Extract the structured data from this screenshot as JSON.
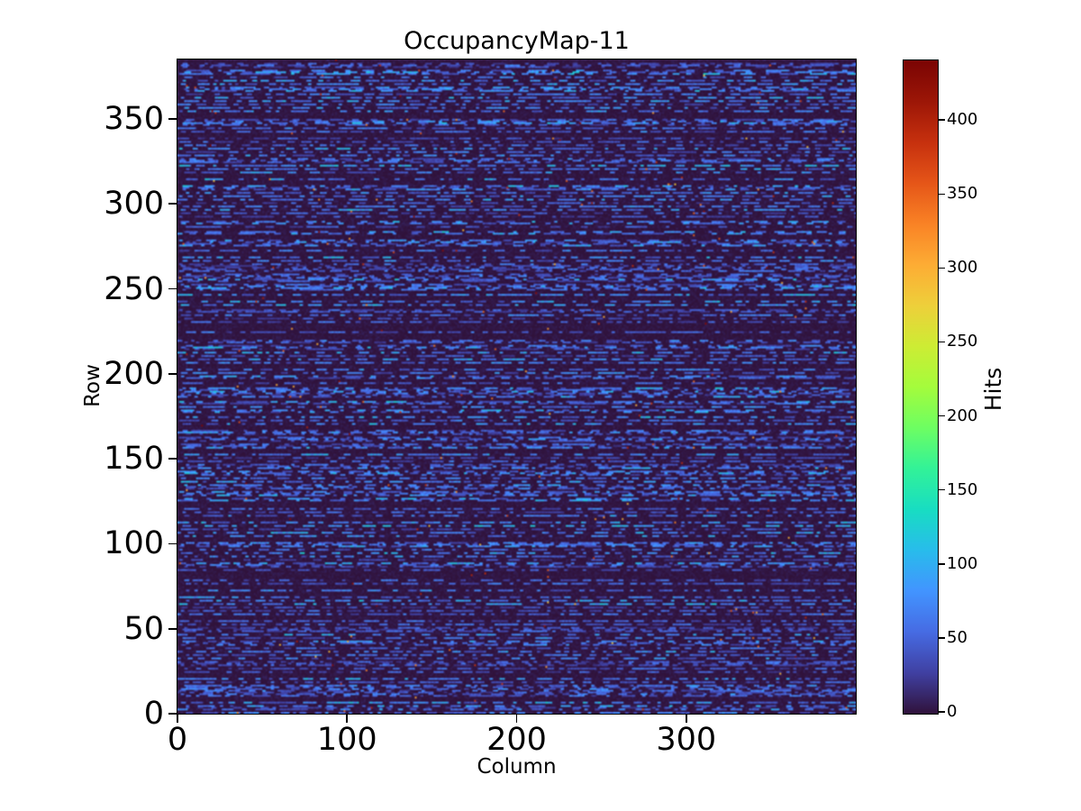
{
  "figure": {
    "background": "#ffffff"
  },
  "chart_data": {
    "type": "heatmap",
    "title": "OccupancyMap-11",
    "xlabel": "Column",
    "ylabel": "Row",
    "colorbar_label": "Hits",
    "x_range": [
      0,
      400
    ],
    "y_range": [
      0,
      385
    ],
    "x_ticks": [
      0,
      100,
      200,
      300
    ],
    "y_ticks": [
      0,
      50,
      100,
      150,
      200,
      250,
      300,
      350
    ],
    "colorbar_ticks": [
      0,
      50,
      100,
      150,
      200,
      250,
      300,
      350,
      400
    ],
    "vmin": 0,
    "vmax": 440,
    "colormap": "turbo",
    "colormap_stops": [
      [
        0.0,
        "#30123b"
      ],
      [
        0.0625,
        "#4040a2"
      ],
      [
        0.125,
        "#466be3"
      ],
      [
        0.1875,
        "#4294ff"
      ],
      [
        0.25,
        "#28bceb"
      ],
      [
        0.3125,
        "#18ddc2"
      ],
      [
        0.375,
        "#32f298"
      ],
      [
        0.4375,
        "#6dfe62"
      ],
      [
        0.5,
        "#a4fc3c"
      ],
      [
        0.5625,
        "#cdec34"
      ],
      [
        0.625,
        "#eecf3a"
      ],
      [
        0.6875,
        "#fdac34"
      ],
      [
        0.75,
        "#f98225"
      ],
      [
        0.8125,
        "#e55518"
      ],
      [
        0.875,
        "#c6300e"
      ],
      [
        0.9375,
        "#9c1607"
      ],
      [
        1.0,
        "#7a0403"
      ]
    ],
    "grid": {
      "cols": 400,
      "rows": 385
    },
    "pattern": {
      "seed": 11,
      "background_value_max": 10,
      "dash_value_range": [
        28,
        85
      ],
      "even_row_dash_probability": 0.85,
      "odd_row_dash_probability": 0.2,
      "dash_length_range": [
        2,
        14
      ],
      "gap_length_range": [
        2,
        14
      ],
      "hot_pixel_count": 220,
      "hot_pixel_value_range": [
        280,
        440
      ],
      "description": "Dark near-zero occupancy background with horizontal rows of short blue dash segments (~30-85 hits) on roughly every other row, plus sparse isolated hot pixels up to ~440 hits."
    }
  }
}
